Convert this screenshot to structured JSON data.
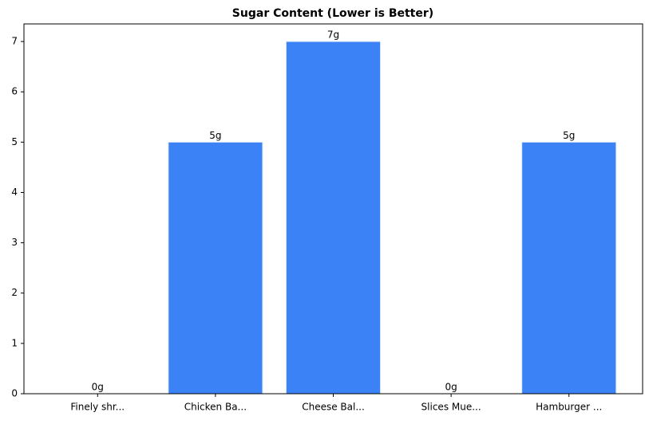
{
  "chart_data": {
    "type": "bar",
    "title": "Sugar Content (Lower is Better)",
    "categories": [
      "Finely shr...",
      "Chicken Ba...",
      "Cheese Bal...",
      "Slices Mue...",
      "Hamburger ..."
    ],
    "values": [
      0,
      5,
      7,
      0,
      5
    ],
    "value_labels": [
      "0g",
      "5g",
      "7g",
      "0g",
      "5g"
    ],
    "color": "#3b82f6",
    "ylim": [
      0,
      7.35
    ],
    "yticks": [
      0,
      1,
      2,
      3,
      4,
      5,
      6,
      7
    ],
    "grid": false
  }
}
